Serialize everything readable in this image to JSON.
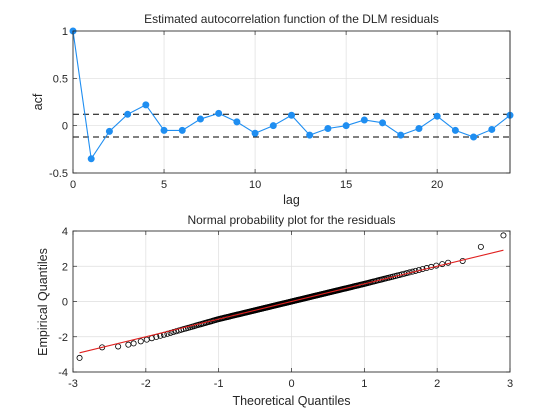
{
  "chart_data": [
    {
      "type": "line",
      "title": "Estimated autocorrelation function of the DLM residuals",
      "xlabel": "lag",
      "ylabel": "acf",
      "xlim": [
        0,
        24
      ],
      "ylim": [
        -0.5,
        1
      ],
      "xticks": [
        0,
        5,
        10,
        15,
        20
      ],
      "yticks": [
        -0.5,
        0,
        0.5,
        1
      ],
      "xtick_labels": [
        "0",
        "5",
        "10",
        "15",
        "20"
      ],
      "ytick_labels": [
        "-0.5",
        "0",
        "0.5",
        "1"
      ],
      "grid": true,
      "series": [
        {
          "color": "#1f8ef1",
          "x": [
            0,
            1,
            2,
            3,
            4,
            5,
            6,
            7,
            8,
            9,
            10,
            11,
            12,
            13,
            14,
            15,
            16,
            17,
            18,
            19,
            20,
            21,
            22,
            23,
            24
          ],
          "y": [
            1.0,
            -0.35,
            -0.06,
            0.12,
            0.22,
            -0.05,
            -0.05,
            0.07,
            0.13,
            0.04,
            -0.08,
            0.0,
            0.11,
            -0.1,
            -0.03,
            0.0,
            0.06,
            0.03,
            -0.1,
            -0.03,
            0.1,
            -0.05,
            -0.12,
            -0.04,
            0.11
          ]
        }
      ],
      "confidence_bounds": {
        "values": [
          0.12,
          -0.12
        ],
        "style": "dashed",
        "color": "#000000"
      }
    },
    {
      "type": "scatter",
      "title": "Normal probability plot for the residuals",
      "xlabel": "Theoretical Quantiles",
      "ylabel": "Empirical Quantiles",
      "xlim": [
        -3,
        3
      ],
      "ylim": [
        -4,
        4
      ],
      "xticks": [
        -3,
        -2,
        -1,
        0,
        1,
        2,
        3
      ],
      "yticks": [
        -4,
        -2,
        0,
        2,
        4
      ],
      "xtick_labels": [
        "-3",
        "-2",
        "-1",
        "0",
        "1",
        "2",
        "3"
      ],
      "ytick_labels": [
        "-4",
        "-2",
        "0",
        "2",
        "4"
      ],
      "grid": true,
      "n_points": 240,
      "marker": "open-circle",
      "marker_color": "#000000",
      "reference_line": {
        "slope": 1.0,
        "intercept": 0.0,
        "color": "#e0201f"
      },
      "tail_points": [
        {
          "x": -2.91,
          "y": -3.2
        },
        {
          "x": -2.6,
          "y": -2.6
        },
        {
          "x": -2.38,
          "y": -2.55
        },
        {
          "x": -2.24,
          "y": -2.45
        },
        {
          "x": 2.15,
          "y": 2.2
        },
        {
          "x": 2.35,
          "y": 2.3
        },
        {
          "x": 2.6,
          "y": 3.1
        },
        {
          "x": 2.91,
          "y": 3.75
        }
      ]
    }
  ]
}
